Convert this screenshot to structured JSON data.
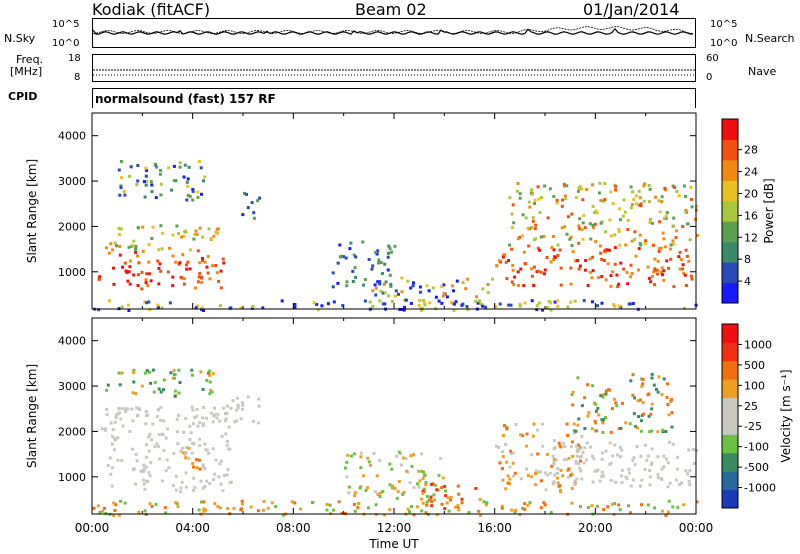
{
  "header": {
    "station": "Kodiak (fitACF)",
    "beam": "Beam 02",
    "date": "01/Jan/2014"
  },
  "strip_panels": {
    "nsky_label": "N.Sky",
    "nsearch_label": "N.Search",
    "nsky_ticks": [
      "10^5",
      "10^0"
    ],
    "nsearch_ticks": [
      "10^5",
      "10^0"
    ],
    "freq_label_1": "Freq.",
    "freq_label_2": "[MHz]",
    "freq_ticks": [
      "18",
      "8"
    ],
    "nave_label": "Nave",
    "nave_ticks": [
      "60",
      "0"
    ],
    "cpid_label": "CPID",
    "cpid_value": "normalsound (fast) 157 RF"
  },
  "chart_data": [
    {
      "type": "heatmap",
      "name": "power",
      "ylabel": "Slant Range [km]",
      "yticks": [
        1000,
        2000,
        3000,
        4000
      ],
      "ylim": [
        180,
        4500
      ],
      "xlim": [
        0,
        24
      ],
      "colorbar_label": "Power [dB]",
      "colorbar_ticks": [
        "4",
        "8",
        "12",
        "16",
        "20",
        "24",
        "28"
      ],
      "colorbar_colors": [
        "#1a1aff",
        "#2a4ab8",
        "#3a8a6a",
        "#5aa050",
        "#a8c83a",
        "#e8c020",
        "#f08a10",
        "#f05010",
        "#ee1010"
      ]
    },
    {
      "type": "heatmap",
      "name": "velocity",
      "ylabel": "Slant Range [km]",
      "yticks": [
        1000,
        2000,
        3000,
        4000
      ],
      "ylim": [
        180,
        4500
      ],
      "xlim": [
        0,
        24
      ],
      "xlabel": "Time UT",
      "xticks": [
        "00:00",
        "04:00",
        "08:00",
        "12:00",
        "16:00",
        "20:00",
        "00:00"
      ],
      "colorbar_label": "Velocity [m s⁻¹]",
      "colorbar_ticks": [
        "1000",
        "500",
        "100",
        "25",
        "-25",
        "-100",
        "-500",
        "-1000"
      ],
      "colorbar_colors": [
        "#1a3ab8",
        "#2a6a9a",
        "#3a8a60",
        "#6ac040",
        "#c8c8c0",
        "#c8c8c0",
        "#f0a020",
        "#f07010",
        "#f03010",
        "#ee1010"
      ]
    }
  ]
}
